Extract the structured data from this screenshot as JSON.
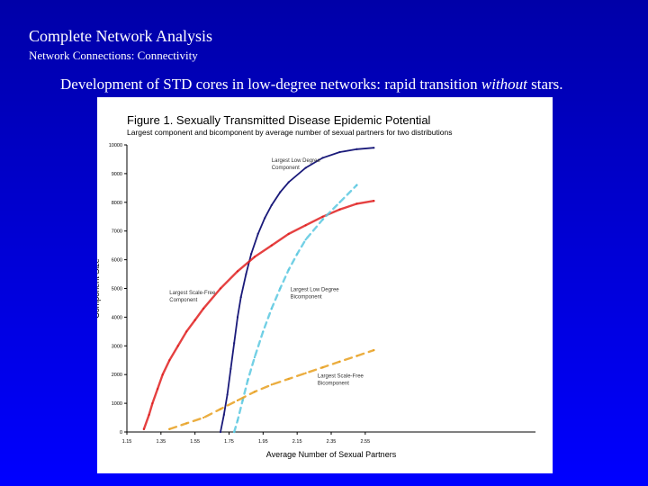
{
  "slide": {
    "title": "Complete Network Analysis",
    "subtitle": "Network Connections: Connectivity",
    "heading_prefix": "Development of STD cores in low-degree networks: rapid transition ",
    "heading_emph": "without",
    "heading_suffix": " stars."
  },
  "chart_data": {
    "type": "scatter",
    "title": "Figure 1.  Sexually Transmitted Disease Epidemic Potential",
    "subtitle": "Largest component and bicomponent by average number of sexual partners for two distributions",
    "xlabel": "Average Number of Sexual Partners",
    "ylabel": "Component Size",
    "xlim": [
      1.15,
      3.55
    ],
    "ylim": [
      0,
      10000
    ],
    "x_ticks": [
      "1.15",
      "1.35",
      "1.55",
      "1.75",
      "1.95",
      "2.15",
      "2.35",
      "2.55"
    ],
    "y_ticks": [
      "0",
      "1000",
      "2000",
      "3000",
      "4000",
      "5000",
      "6000",
      "7000",
      "8000",
      "9000",
      "10000"
    ],
    "colors": {
      "low_degree_component": "#1a1a7a",
      "scale_free_component": "#e02020",
      "low_degree_bicomponent": "#5bc8e0",
      "scale_free_bicomponent": "#e8a020"
    },
    "series": [
      {
        "name": "Largest Low Degree Component",
        "x": [
          1.7,
          1.72,
          1.74,
          1.76,
          1.78,
          1.8,
          1.82,
          1.85,
          1.88,
          1.92,
          1.96,
          2.0,
          2.05,
          2.1,
          2.2,
          2.3,
          2.4,
          2.5,
          2.6
        ],
        "y": [
          0,
          600,
          1300,
          2200,
          3100,
          4000,
          4700,
          5500,
          6200,
          6900,
          7450,
          7900,
          8350,
          8700,
          9200,
          9550,
          9750,
          9850,
          9900
        ]
      },
      {
        "name": "Largest Scale-Free Component",
        "x": [
          1.25,
          1.28,
          1.3,
          1.33,
          1.36,
          1.4,
          1.45,
          1.5,
          1.55,
          1.6,
          1.7,
          1.8,
          1.9,
          2.0,
          2.1,
          2.2,
          2.3,
          2.4,
          2.5,
          2.6
        ],
        "y": [
          100,
          600,
          1000,
          1500,
          2000,
          2500,
          3000,
          3500,
          3900,
          4300,
          5000,
          5600,
          6100,
          6500,
          6900,
          7200,
          7500,
          7750,
          7950,
          8050
        ]
      },
      {
        "name": "Largest Low Degree Bicomponent",
        "x": [
          1.78,
          1.8,
          1.83,
          1.86,
          1.9,
          1.95,
          2.0,
          2.05,
          2.1,
          2.15,
          2.2,
          2.3,
          2.4,
          2.5
        ],
        "y": [
          0,
          400,
          1100,
          1800,
          2600,
          3500,
          4300,
          5000,
          5650,
          6200,
          6700,
          7400,
          8000,
          8600
        ]
      },
      {
        "name": "Largest Scale-Free Bicomponent",
        "x": [
          1.4,
          1.5,
          1.6,
          1.7,
          1.8,
          1.9,
          2.0,
          2.1,
          2.2,
          2.3,
          2.4,
          2.5,
          2.6
        ],
        "y": [
          100,
          300,
          500,
          800,
          1100,
          1400,
          1650,
          1850,
          2050,
          2250,
          2450,
          2650,
          2850
        ]
      }
    ],
    "annotations": [
      {
        "text": "Largest Low Degree",
        "text2": "Component",
        "series": 0
      },
      {
        "text": "Largest Scale-Free",
        "text2": "Component",
        "series": 1
      },
      {
        "text": "Largest Low Degree",
        "text2": "Bicomponent",
        "series": 2
      },
      {
        "text": "Largest Scale-Free",
        "text2": "Bicomponent",
        "series": 3
      }
    ],
    "grid": false,
    "legend": "none"
  }
}
